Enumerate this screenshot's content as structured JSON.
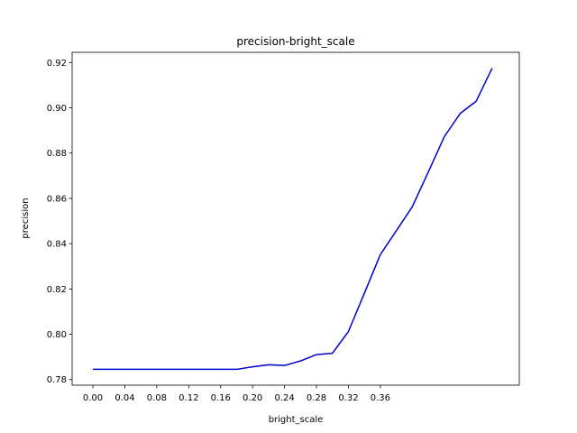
{
  "chart_data": {
    "type": "line",
    "title": "precision-bright_scale",
    "xlabel": "bright_scale",
    "ylabel": "precision",
    "xlim": [
      -0.026,
      0.534
    ],
    "ylim": [
      0.7775,
      0.9245
    ],
    "xticks": [
      0.0,
      0.04,
      0.08,
      0.12,
      0.16,
      0.2,
      0.24,
      0.28,
      0.32,
      0.36
    ],
    "xtick_labels": [
      "0.00",
      "0.04",
      "0.08",
      "0.12",
      "0.16",
      "0.20",
      "0.24",
      "0.28",
      "0.32",
      "0.36"
    ],
    "yticks": [
      0.78,
      0.8,
      0.82,
      0.84,
      0.86,
      0.88,
      0.9,
      0.92
    ],
    "ytick_labels": [
      "0.78",
      "0.80",
      "0.82",
      "0.84",
      "0.86",
      "0.88",
      "0.90",
      "0.92"
    ],
    "grid": false,
    "series": [
      {
        "color": "#0000cc",
        "x": [
          0.0,
          0.02,
          0.04,
          0.06,
          0.08,
          0.1,
          0.12,
          0.14,
          0.16,
          0.18,
          0.2,
          0.22,
          0.24,
          0.26,
          0.28,
          0.3,
          0.32,
          0.34,
          0.36,
          0.38,
          0.4,
          0.42,
          0.44,
          0.46,
          0.48,
          0.5
        ],
        "y": [
          0.7845,
          0.7845,
          0.7845,
          0.7845,
          0.7845,
          0.7845,
          0.7845,
          0.7845,
          0.7845,
          0.7845,
          0.7856,
          0.7865,
          0.7862,
          0.7882,
          0.791,
          0.7916,
          0.8012,
          0.8181,
          0.8352,
          0.8457,
          0.8563,
          0.8716,
          0.8872,
          0.8975,
          0.9029,
          0.9175
        ]
      }
    ]
  }
}
